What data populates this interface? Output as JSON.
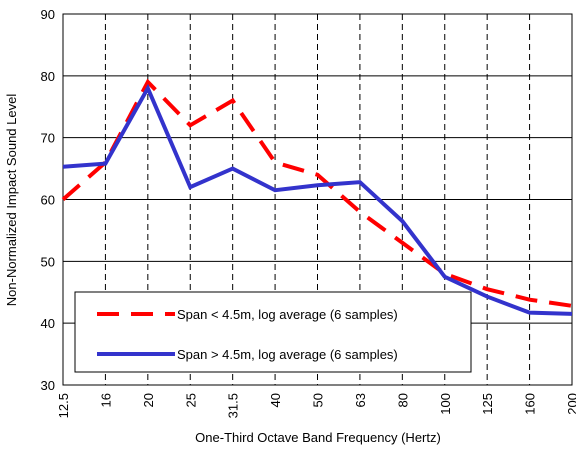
{
  "chart_data": {
    "type": "line",
    "x_label": "One-Third Octave Band Frequency (Hertz)",
    "y_label": "Non-Normalized Impact Sound Level",
    "categories": [
      "12.5",
      "16",
      "20",
      "25",
      "31.5",
      "40",
      "50",
      "63",
      "80",
      "100",
      "125",
      "160",
      "200"
    ],
    "series": [
      {
        "name": "Span < 4.5m, log average (6 samples)",
        "color": "#ff0000",
        "dash": true,
        "values": [
          60,
          66,
          79,
          72,
          76,
          66,
          64,
          58,
          53,
          48,
          45.5,
          43.8,
          42.8
        ]
      },
      {
        "name": "Span > 4.5m, log average (6 samples)",
        "color": "#3333cc",
        "dash": false,
        "values": [
          65.3,
          65.8,
          78,
          62,
          65,
          61.5,
          62.3,
          62.8,
          56.5,
          47.5,
          44.3,
          41.7,
          41.5
        ]
      }
    ],
    "ylim": [
      30,
      90
    ],
    "yticks": [
      30,
      40,
      50,
      60,
      70,
      80,
      90
    ],
    "grid": true,
    "legend": "lower left"
  }
}
